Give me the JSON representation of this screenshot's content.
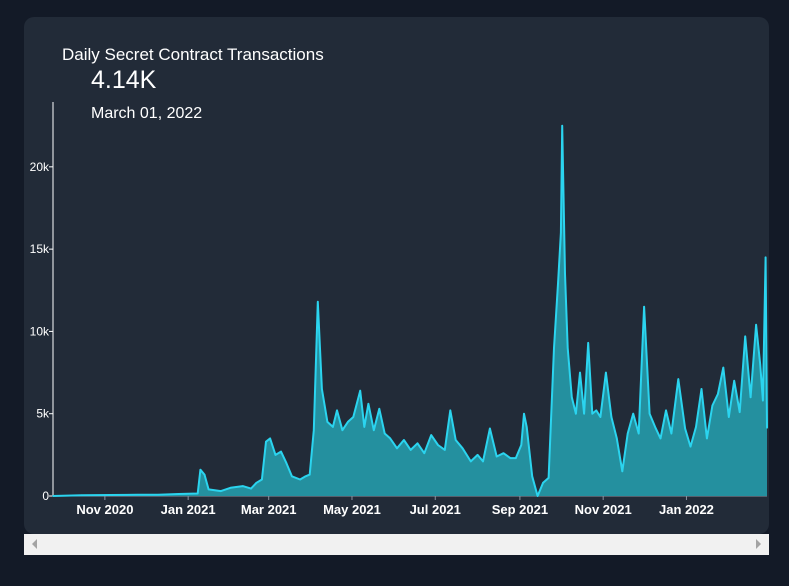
{
  "header": {
    "title": "Daily Secret Contract Transactions",
    "value": "4.14K",
    "date": "March 01, 2022"
  },
  "colors": {
    "page_bg": "#131a27",
    "card_bg": "#222b38",
    "line": "#2bd4ef",
    "fill": "#24909f"
  },
  "scrollbar": {
    "left_icon": "arrow-left",
    "right_icon": "arrow-right"
  },
  "chart_data": {
    "type": "area",
    "title": "Daily Secret Contract Transactions",
    "xlabel": "",
    "ylabel": "",
    "x_range": [
      "2020-09-24",
      "2022-03-01"
    ],
    "ylim": [
      0,
      24000
    ],
    "yticks": [
      0,
      5000,
      10000,
      15000,
      20000
    ],
    "ytick_labels": [
      "0",
      "5k",
      "10k",
      "15k",
      "20k"
    ],
    "xticks": [
      "2020-11-01",
      "2021-01-01",
      "2021-03-01",
      "2021-05-01",
      "2021-07-01",
      "2021-09-01",
      "2021-11-01",
      "2022-01-01"
    ],
    "xtick_labels": [
      "Nov 2020",
      "Jan 2021",
      "Mar 2021",
      "May 2021",
      "Jul 2021",
      "Sep 2021",
      "Nov 2021",
      "Jan 2022"
    ],
    "grid": false,
    "series": [
      {
        "x": [
          "2020-09-24",
          "2020-10-15",
          "2020-11-05",
          "2020-11-25",
          "2020-12-10",
          "2020-12-25",
          "2021-01-08",
          "2021-01-10",
          "2021-01-13",
          "2021-01-16",
          "2021-01-25",
          "2021-02-01",
          "2021-02-10",
          "2021-02-16",
          "2021-02-20",
          "2021-02-24",
          "2021-02-27",
          "2021-03-02",
          "2021-03-06",
          "2021-03-10",
          "2021-03-14",
          "2021-03-18",
          "2021-03-24",
          "2021-03-28",
          "2021-03-31",
          "2021-04-03",
          "2021-04-06",
          "2021-04-09",
          "2021-04-13",
          "2021-04-17",
          "2021-04-20",
          "2021-04-24",
          "2021-04-28",
          "2021-05-02",
          "2021-05-07",
          "2021-05-10",
          "2021-05-13",
          "2021-05-17",
          "2021-05-21",
          "2021-05-25",
          "2021-05-29",
          "2021-06-03",
          "2021-06-08",
          "2021-06-13",
          "2021-06-18",
          "2021-06-23",
          "2021-06-28",
          "2021-07-03",
          "2021-07-08",
          "2021-07-12",
          "2021-07-16",
          "2021-07-21",
          "2021-07-27",
          "2021-08-01",
          "2021-08-05",
          "2021-08-10",
          "2021-08-15",
          "2021-08-20",
          "2021-08-25",
          "2021-08-29",
          "2021-09-02",
          "2021-09-04",
          "2021-09-06",
          "2021-09-10",
          "2021-09-14",
          "2021-09-18",
          "2021-09-22",
          "2021-09-26",
          "2021-09-29",
          "2021-10-01",
          "2021-10-02",
          "2021-10-04",
          "2021-10-06",
          "2021-10-09",
          "2021-10-12",
          "2021-10-15",
          "2021-10-18",
          "2021-10-21",
          "2021-10-24",
          "2021-10-27",
          "2021-10-30",
          "2021-11-03",
          "2021-11-07",
          "2021-11-11",
          "2021-11-15",
          "2021-11-19",
          "2021-11-23",
          "2021-11-27",
          "2021-12-01",
          "2021-12-05",
          "2021-12-09",
          "2021-12-13",
          "2021-12-17",
          "2021-12-21",
          "2021-12-26",
          "2021-12-31",
          "2022-01-04",
          "2022-01-08",
          "2022-01-12",
          "2022-01-16",
          "2022-01-20",
          "2022-01-24",
          "2022-01-28",
          "2022-02-01",
          "2022-02-05",
          "2022-02-09",
          "2022-02-13",
          "2022-02-17",
          "2022-02-21",
          "2022-02-24",
          "2022-02-26",
          "2022-02-28",
          "2022-03-01"
        ],
        "values": [
          0,
          50,
          60,
          70,
          80,
          120,
          150,
          1600,
          1300,
          400,
          300,
          500,
          600,
          450,
          800,
          1000,
          3300,
          3500,
          2500,
          2700,
          2000,
          1200,
          1000,
          1200,
          1300,
          4000,
          11800,
          6500,
          4500,
          4200,
          5200,
          4000,
          4500,
          4800,
          6400,
          4200,
          5600,
          4000,
          5300,
          3800,
          3500,
          2900,
          3400,
          2800,
          3200,
          2600,
          3700,
          3100,
          2800,
          5200,
          3400,
          2900,
          2100,
          2500,
          2100,
          4100,
          2400,
          2600,
          2300,
          2300,
          3100,
          5000,
          4200,
          1200,
          0,
          800,
          1100,
          9000,
          13000,
          16000,
          22500,
          13500,
          9000,
          6000,
          5000,
          7500,
          5000,
          9300,
          5000,
          5200,
          4800,
          7500,
          4800,
          3500,
          1500,
          3800,
          5000,
          3800,
          11500,
          5000,
          4200,
          3500,
          5200,
          3800,
          7100,
          4100,
          3000,
          4200,
          6500,
          3500,
          5500,
          6200,
          7800,
          4800,
          7000,
          5100,
          9700,
          6000,
          10400,
          8000,
          5800,
          14500,
          4140
        ]
      }
    ]
  }
}
